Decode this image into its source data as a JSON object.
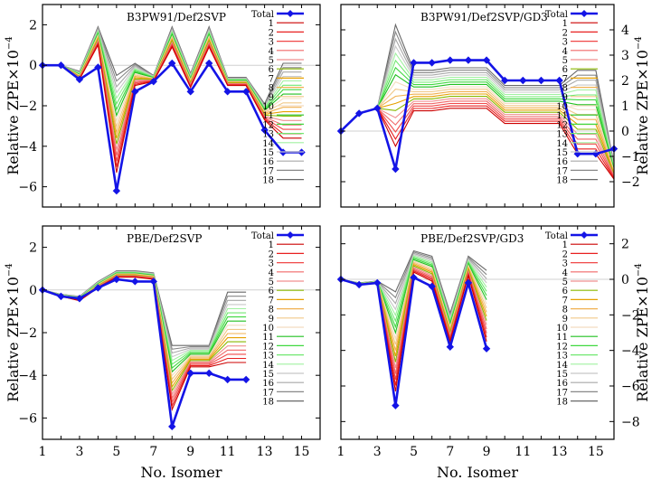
{
  "chart_data": [
    {
      "type": "line",
      "title": "B3PW91/Def2SVP",
      "xlabel": "",
      "ylabel": "Relative ZPE×10",
      "ylabel_exp": "−4",
      "ylabel_side": "left",
      "xlim": [
        1,
        16
      ],
      "ylim": [
        -7,
        3
      ],
      "xticks": [
        "",
        "",
        "",
        "",
        "",
        "",
        "",
        ""
      ],
      "yticks": [
        {
          "v": 2,
          "label": "2"
        },
        {
          "v": 0,
          "label": "0"
        },
        {
          "v": -2,
          "label": "−2"
        },
        {
          "v": -4,
          "label": "−4"
        },
        {
          "v": -6,
          "label": "−6"
        }
      ],
      "x": [
        1,
        2,
        3,
        4,
        5,
        6,
        7,
        8,
        9,
        10,
        11,
        12,
        13,
        14,
        15
      ],
      "total_name": "Total",
      "total": [
        0.0,
        0.0,
        -0.7,
        -0.1,
        -6.2,
        -1.3,
        -0.8,
        0.1,
        -1.3,
        0.1,
        -1.3,
        -1.3,
        -3.2,
        -4.3,
        -4.3
      ],
      "components_top": [
        0.0,
        0.0,
        -0.3,
        1.9,
        -0.5,
        0.1,
        -0.5,
        1.9,
        -0.4,
        1.9,
        -0.6,
        -0.6,
        -1.9,
        0.1,
        0.1
      ],
      "components_bottom": [
        0.0,
        0.0,
        -0.7,
        1.0,
        -5.3,
        -1.0,
        -0.8,
        0.9,
        -1.1,
        0.9,
        -1.0,
        -1.0,
        -2.7,
        -3.6,
        -3.6
      ],
      "legend_labels": [
        "1",
        "2",
        "3",
        "4",
        "5",
        "6",
        "7",
        "8",
        "9",
        "10",
        "11",
        "12",
        "13",
        "14",
        "15",
        "16",
        "17",
        "18"
      ]
    },
    {
      "type": "line",
      "title": "B3PW91/Def2SVP/GD3",
      "xlabel": "",
      "ylabel": "Relative ZPE×10",
      "ylabel_exp": "−4",
      "ylabel_side": "right",
      "xlim": [
        1,
        16
      ],
      "ylim": [
        -3,
        5
      ],
      "xticks": [
        "",
        "",
        "",
        "",
        "",
        "",
        "",
        ""
      ],
      "yticks": [
        {
          "v": 4,
          "label": "4"
        },
        {
          "v": 3,
          "label": "3"
        },
        {
          "v": 2,
          "label": "2"
        },
        {
          "v": 1,
          "label": "1"
        },
        {
          "v": 0,
          "label": "0"
        },
        {
          "v": -1,
          "label": "−1"
        },
        {
          "v": -2,
          "label": "−2"
        }
      ],
      "x": [
        1,
        2,
        3,
        4,
        5,
        6,
        7,
        8,
        9,
        10,
        11,
        12,
        13,
        14,
        15,
        16
      ],
      "total_name": "Total",
      "total": [
        0.0,
        0.7,
        0.9,
        -1.5,
        2.7,
        2.7,
        2.8,
        2.8,
        2.8,
        2.0,
        2.0,
        2.0,
        2.0,
        -0.9,
        -0.9,
        -0.7
      ],
      "components_top": [
        0.0,
        0.7,
        0.9,
        4.2,
        2.4,
        2.4,
        2.5,
        2.5,
        2.5,
        1.8,
        1.8,
        1.8,
        1.8,
        2.4,
        2.4,
        -1.3
      ],
      "components_bottom": [
        0.0,
        0.7,
        0.9,
        -0.6,
        0.8,
        0.8,
        0.9,
        0.9,
        0.9,
        0.3,
        0.3,
        0.3,
        0.3,
        -0.9,
        -0.9,
        -1.9
      ],
      "legend_labels": [
        "1",
        "2",
        "3",
        "4",
        "5",
        "6",
        "7",
        "8",
        "9",
        "10",
        "11",
        "12",
        "13",
        "14",
        "15",
        "16",
        "17",
        "18"
      ]
    },
    {
      "type": "line",
      "title": "PBE/Def2SVP",
      "xlabel": "No. Isomer",
      "ylabel": "Relative ZPE×10",
      "ylabel_exp": "−4",
      "ylabel_side": "left",
      "xlim": [
        1,
        16
      ],
      "ylim": [
        -7,
        3
      ],
      "xticks": [
        "1",
        "3",
        "5",
        "7",
        "9",
        "11",
        "13",
        "15"
      ],
      "yticks": [
        {
          "v": 2,
          "label": "2"
        },
        {
          "v": 0,
          "label": "0"
        },
        {
          "v": -2,
          "label": "−2"
        },
        {
          "v": -4,
          "label": "−4"
        },
        {
          "v": -6,
          "label": "−6"
        }
      ],
      "x": [
        1,
        2,
        3,
        4,
        5,
        6,
        7,
        8,
        9,
        10,
        11,
        12
      ],
      "total_name": "Total",
      "total": [
        0.0,
        -0.3,
        -0.4,
        0.1,
        0.5,
        0.4,
        0.4,
        -6.4,
        -3.9,
        -3.9,
        -4.2,
        -4.2
      ],
      "components_top": [
        0.0,
        -0.2,
        -0.3,
        0.4,
        0.9,
        0.9,
        0.8,
        -2.6,
        -2.6,
        -2.6,
        -0.1,
        -0.1
      ],
      "components_bottom": [
        0.0,
        -0.3,
        -0.5,
        0.1,
        0.6,
        0.6,
        0.5,
        -5.6,
        -3.6,
        -3.6,
        -3.4,
        -3.4
      ],
      "legend_labels": [
        "1",
        "2",
        "3",
        "4",
        "5",
        "6",
        "7",
        "8",
        "9",
        "10",
        "11",
        "12",
        "13",
        "14",
        "15",
        "16",
        "17",
        "18"
      ]
    },
    {
      "type": "line",
      "title": "PBE/Def2SVP/GD3",
      "xlabel": "No. Isomer",
      "ylabel": "Relative ZPE×10",
      "ylabel_exp": "−4",
      "ylabel_side": "right",
      "xlim": [
        1,
        16
      ],
      "ylim": [
        -9,
        3
      ],
      "xticks": [
        "1",
        "3",
        "5",
        "7",
        "9",
        "11",
        "13",
        "15"
      ],
      "yticks": [
        {
          "v": 2,
          "label": "2"
        },
        {
          "v": 0,
          "label": "0"
        },
        {
          "v": -2,
          "label": "−2"
        },
        {
          "v": -4,
          "label": "−4"
        },
        {
          "v": -6,
          "label": "−6"
        },
        {
          "v": -8,
          "label": "−8"
        }
      ],
      "x": [
        1,
        2,
        3,
        4,
        5,
        6,
        7,
        8,
        9
      ],
      "total_name": "Total",
      "total": [
        0.0,
        -0.3,
        -0.2,
        -7.1,
        0.1,
        -0.4,
        -3.8,
        -0.2,
        -3.9
      ],
      "components_top": [
        0.0,
        -0.2,
        -0.1,
        -0.7,
        1.6,
        1.3,
        -1.9,
        1.3,
        0.5
      ],
      "components_bottom": [
        0.0,
        -0.3,
        -0.2,
        -6.3,
        0.4,
        -0.1,
        -3.5,
        0.2,
        -3.5
      ],
      "legend_labels": [
        "1",
        "2",
        "3",
        "4",
        "5",
        "6",
        "7",
        "8",
        "9",
        "10",
        "11",
        "12",
        "13",
        "14",
        "15",
        "16",
        "17",
        "18"
      ]
    }
  ],
  "colors": {
    "total": "#1414e6",
    "components": [
      "#cc0000",
      "#e82020",
      "#f04848",
      "#f06868",
      "#f09090",
      "#8ab800",
      "#e6a000",
      "#f0b050",
      "#f0c888",
      "#f4dcc0",
      "#20c020",
      "#40d840",
      "#70e870",
      "#a0f0a0",
      "#c8c8c8",
      "#a8a8a8",
      "#888888",
      "#686868"
    ],
    "zero_line": "#d0d0d0",
    "axis": "#000000"
  }
}
